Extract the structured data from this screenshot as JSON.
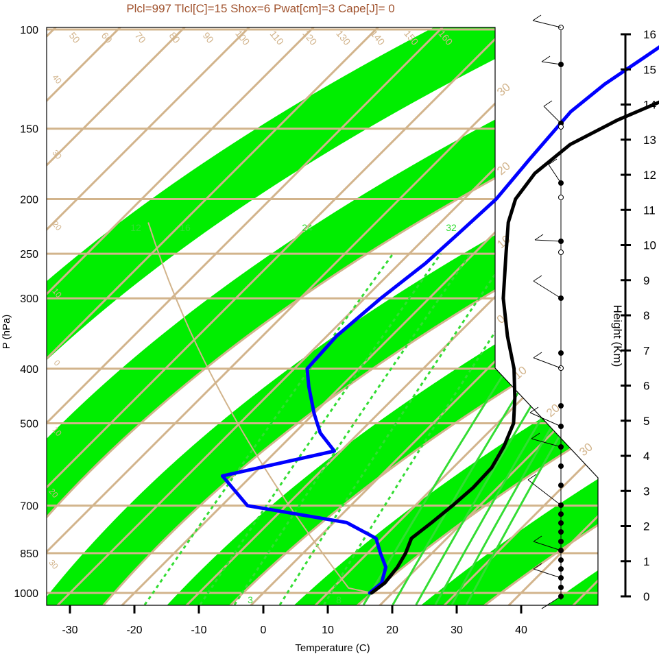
{
  "chart_data": {
    "type": "line",
    "title": "Plcl=997 Tlcl[C]=15 Shox=6 Pwat[cm]=3 Cape[J]= 0",
    "xlabel": "Temperature (C)",
    "ylabel": "P (hPa)",
    "y2label": "Height (Km)",
    "xlim": [
      -34,
      52
    ],
    "ylim": [
      1050,
      100
    ],
    "x_ticks": [
      "-30",
      "-20",
      "-10",
      "0",
      "10",
      "20",
      "30",
      "40"
    ],
    "p_ticks": [
      "100",
      "150",
      "200",
      "250",
      "300",
      "400",
      "500",
      "700",
      "850",
      "1000"
    ],
    "height_ticks": [
      "0",
      "1",
      "2",
      "3",
      "4",
      "5",
      "6",
      "7",
      "8",
      "9",
      "10",
      "11",
      "12",
      "13",
      "14",
      "15",
      "16"
    ],
    "isotherm_labels": [
      "50",
      "60",
      "70",
      "80",
      "90",
      "100",
      "110",
      "120",
      "130",
      "140",
      "150",
      "160"
    ],
    "right_labels": [
      "30",
      "20",
      "10",
      "0",
      "10",
      "20",
      "30"
    ],
    "left_labels": [
      "40",
      "30",
      "20",
      "10",
      "0",
      "10",
      "20",
      "30"
    ],
    "mixing_ratio_labels": [
      "12",
      "16",
      "24",
      "32",
      "3",
      "8"
    ],
    "colors": {
      "title": "#a0522d",
      "temperature": "#000000",
      "dewpoint": "#0000ff",
      "band": "#00ee00",
      "grid": "#d2b48c"
    },
    "series": [
      {
        "name": "Temperature",
        "points": [
          [
            16.8,
            1000
          ],
          [
            17.3,
            960
          ],
          [
            16.8,
            900
          ],
          [
            15.9,
            850
          ],
          [
            14.5,
            800
          ],
          [
            15.2,
            750
          ],
          [
            15.8,
            700
          ],
          [
            16.2,
            650
          ],
          [
            16.0,
            600
          ],
          [
            14.6,
            550
          ],
          [
            12.5,
            500
          ],
          [
            8.7,
            450
          ],
          [
            4.1,
            400
          ],
          [
            -2.0,
            350
          ],
          [
            -8.5,
            300
          ],
          [
            -15.0,
            250
          ],
          [
            -19.5,
            220
          ],
          [
            -22.0,
            200
          ],
          [
            -23.0,
            180
          ],
          [
            -22.0,
            160
          ],
          [
            -18.5,
            145
          ],
          [
            -13.0,
            130
          ],
          [
            -6.0,
            115
          ],
          [
            0.5,
            100
          ]
        ]
      },
      {
        "name": "Dew point",
        "points": [
          [
            16.5,
            1000
          ],
          [
            16.8,
            960
          ],
          [
            15.0,
            900
          ],
          [
            12.0,
            850
          ],
          [
            9.0,
            800
          ],
          [
            2.0,
            750
          ],
          [
            -16.0,
            700
          ],
          [
            -24.5,
            620
          ],
          [
            -11.0,
            560
          ],
          [
            -16.0,
            520
          ],
          [
            -20.0,
            480
          ],
          [
            -25.0,
            430
          ],
          [
            -28.0,
            400
          ],
          [
            -28.5,
            350
          ],
          [
            -27.5,
            300
          ],
          [
            -26.0,
            260
          ],
          [
            -25.5,
            230
          ],
          [
            -25.0,
            200
          ],
          [
            -26.0,
            170
          ],
          [
            -27.0,
            140
          ],
          [
            -26.0,
            125
          ],
          [
            -24.0,
            112
          ],
          [
            -22.0,
            100
          ]
        ]
      }
    ]
  }
}
